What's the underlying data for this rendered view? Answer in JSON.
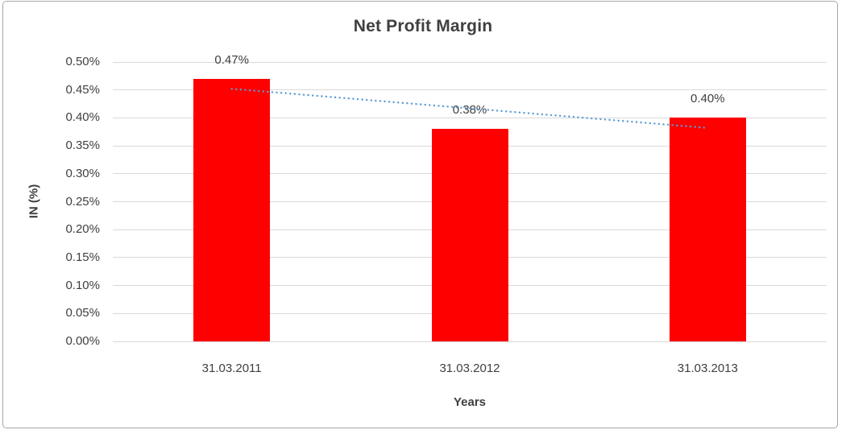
{
  "chart_data": {
    "type": "bar",
    "title": "Net Profit Margin",
    "xlabel": "Years",
    "ylabel": "IN (%)",
    "categories": [
      "31.03.2011",
      "31.03.2012",
      "31.03.2013"
    ],
    "values": [
      0.47,
      0.38,
      0.4
    ],
    "data_labels": [
      "0.47%",
      "0.38%",
      "0.40%"
    ],
    "y_ticks": [
      "0.00%",
      "0.05%",
      "0.10%",
      "0.15%",
      "0.20%",
      "0.25%",
      "0.30%",
      "0.35%",
      "0.40%",
      "0.45%",
      "0.50%"
    ],
    "ylim": [
      0,
      0.5
    ],
    "y_tick_step": 0.05,
    "grid": true,
    "legend": false,
    "bar_color": "#ff0000",
    "gridline_color": "#d9d9d9",
    "text_color": "#3f3f3f",
    "trendline": {
      "type": "linear",
      "style": "dotted",
      "color": "#5b9bd5",
      "start_value": 0.452,
      "end_value": 0.382
    }
  }
}
